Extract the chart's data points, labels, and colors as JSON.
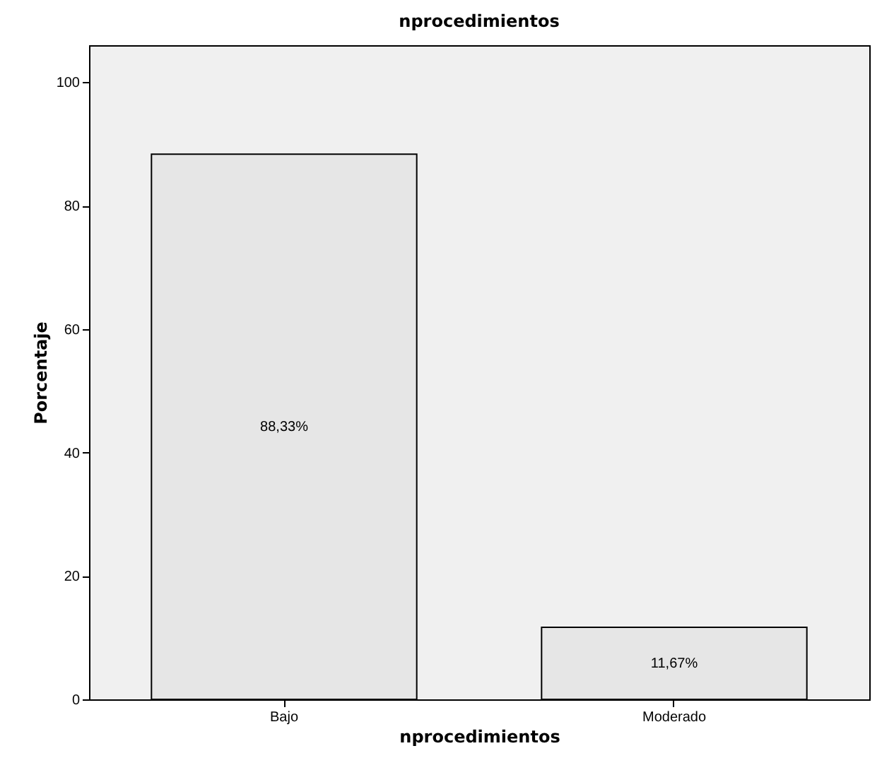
{
  "chart_data": {
    "type": "bar",
    "title": "nprocedimientos",
    "xlabel": "nprocedimientos",
    "ylabel": "Porcentaje",
    "categories": [
      "Bajo",
      "Moderado"
    ],
    "values": [
      88.33,
      11.67
    ],
    "color": "#e6e6e6",
    "value_labels": [
      "88,33%",
      "11,67%"
    ],
    "ylim": [
      0,
      106
    ],
    "yticks": [
      0,
      20,
      40,
      60,
      80,
      100
    ],
    "grid": false
  }
}
